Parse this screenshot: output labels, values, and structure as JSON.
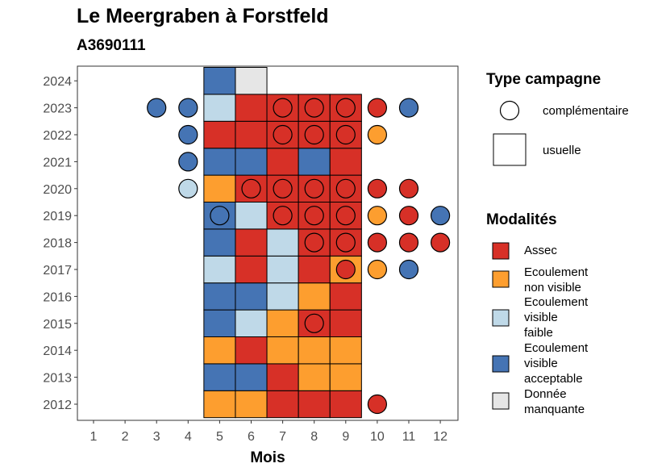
{
  "chart_data": {
    "type": "heatmap",
    "title": "Le Meergraben à Forstfeld",
    "subtitle": "A3690111",
    "xlabel": "Mois",
    "ylabel": "",
    "x_ticks": [
      "1",
      "2",
      "3",
      "4",
      "5",
      "6",
      "7",
      "8",
      "9",
      "10",
      "11",
      "12"
    ],
    "y_ticks": [
      "2012",
      "2013",
      "2014",
      "2015",
      "2016",
      "2017",
      "2018",
      "2019",
      "2020",
      "2021",
      "2022",
      "2023",
      "2024"
    ],
    "categories": {
      "A": {
        "label": "Assec",
        "color": "#d73027"
      },
      "E": {
        "label": "Ecoulement\nnon visible",
        "color": "#fd9e2f"
      },
      "F": {
        "label": "Ecoulement\nvisible\nfaible",
        "color": "#bfd9e8"
      },
      "V": {
        "label": "Ecoulement\nvisible\nacceptable",
        "color": "#4574b4"
      },
      "D": {
        "label": "Donnée\nmanquante",
        "color": "#e6e6e6"
      }
    },
    "usuelle": [
      {
        "year": 2012,
        "values": {
          "5": "E",
          "6": "E",
          "7": "A",
          "8": "A",
          "9": "A"
        }
      },
      {
        "year": 2013,
        "values": {
          "5": "V",
          "6": "V",
          "7": "A",
          "8": "E",
          "9": "E"
        }
      },
      {
        "year": 2014,
        "values": {
          "5": "E",
          "6": "A",
          "7": "E",
          "8": "E",
          "9": "E"
        }
      },
      {
        "year": 2015,
        "values": {
          "5": "V",
          "6": "F",
          "7": "E",
          "8": "A",
          "9": "A"
        }
      },
      {
        "year": 2016,
        "values": {
          "5": "V",
          "6": "V",
          "7": "F",
          "8": "E",
          "9": "A"
        }
      },
      {
        "year": 2017,
        "values": {
          "5": "F",
          "6": "A",
          "7": "F",
          "8": "A",
          "9": "E"
        }
      },
      {
        "year": 2018,
        "values": {
          "5": "V",
          "6": "A",
          "7": "F",
          "8": "A",
          "9": "A"
        }
      },
      {
        "year": 2019,
        "values": {
          "5": "V",
          "6": "F",
          "7": "A",
          "8": "A",
          "9": "A"
        }
      },
      {
        "year": 2020,
        "values": {
          "5": "E",
          "6": "A",
          "7": "A",
          "8": "A",
          "9": "A"
        }
      },
      {
        "year": 2021,
        "values": {
          "5": "V",
          "6": "V",
          "7": "A",
          "8": "V",
          "9": "A"
        }
      },
      {
        "year": 2022,
        "values": {
          "5": "A",
          "6": "A",
          "7": "A",
          "8": "A",
          "9": "A"
        }
      },
      {
        "year": 2023,
        "values": {
          "5": "F",
          "6": "A",
          "7": "A",
          "8": "A",
          "9": "A"
        }
      },
      {
        "year": 2024,
        "values": {
          "5": "V",
          "6": "D"
        }
      }
    ],
    "complementaire": [
      {
        "year": 2012,
        "values": {
          "10": "A"
        }
      },
      {
        "year": 2015,
        "values": {
          "8": "A"
        }
      },
      {
        "year": 2017,
        "values": {
          "9": "A",
          "10": "E",
          "11": "V"
        }
      },
      {
        "year": 2018,
        "values": {
          "8": "A",
          "9": "A",
          "10": "A",
          "11": "A",
          "12": "A"
        }
      },
      {
        "year": 2019,
        "values": {
          "5": "V",
          "7": "A",
          "8": "A",
          "9": "A",
          "10": "E",
          "11": "A",
          "12": "V"
        }
      },
      {
        "year": 2020,
        "values": {
          "4": "F",
          "6": "A",
          "7": "A",
          "8": "A",
          "9": "A",
          "10": "A",
          "11": "A"
        }
      },
      {
        "year": 2021,
        "values": {
          "4": "V"
        }
      },
      {
        "year": 2022,
        "values": {
          "4": "V",
          "7": "A",
          "8": "A",
          "9": "A",
          "10": "E"
        }
      },
      {
        "year": 2023,
        "values": {
          "3": "V",
          "4": "V",
          "7": "A",
          "8": "A",
          "9": "A",
          "10": "A",
          "11": "V"
        }
      }
    ],
    "grid": false,
    "legend_position": "right"
  },
  "legend": {
    "type_title": "Type campagne",
    "type_items": [
      "complémentaire",
      "usuelle"
    ],
    "mod_title": "Modalités"
  }
}
